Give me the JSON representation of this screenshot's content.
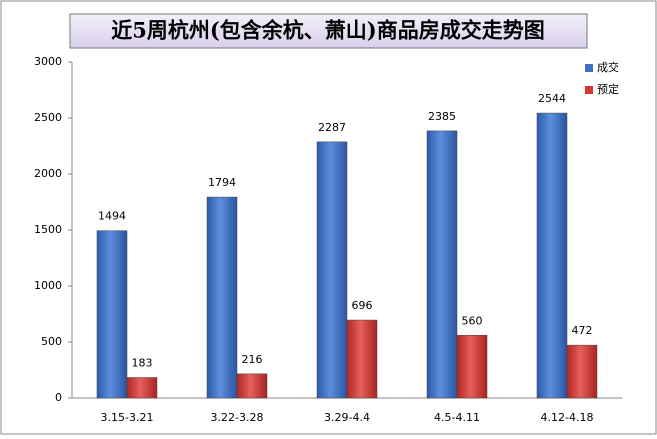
{
  "chart_data": {
    "type": "bar",
    "title": "近5周杭州(包含余杭、萧山)商品房成交走势图",
    "categories": [
      "3.15-3.21",
      "3.22-3.28",
      "3.29-4.4",
      "4.5-4.11",
      "4.12-4.18"
    ],
    "series": [
      {
        "name": "成交",
        "color": "#3f72c4",
        "values": [
          1494,
          1794,
          2287,
          2385,
          2544
        ]
      },
      {
        "name": "预定",
        "color": "#d23a36",
        "values": [
          183,
          216,
          696,
          560,
          472
        ]
      }
    ],
    "ylim": [
      0,
      3000
    ],
    "yticks": [
      0,
      500,
      1000,
      1500,
      2000,
      2500,
      3000
    ],
    "grid": false,
    "legend": "top-right"
  }
}
